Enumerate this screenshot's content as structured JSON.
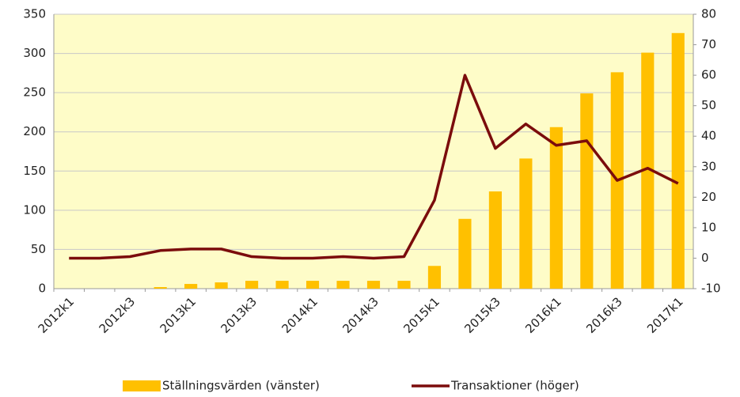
{
  "chart_data": {
    "type": "bar+line",
    "categories": [
      "2012k1",
      null,
      "2012k3",
      null,
      "2013k1",
      null,
      "2013k3",
      null,
      "2014k1",
      null,
      "2014k3",
      null,
      "2015k1",
      null,
      "2015k3",
      null,
      "2016k1",
      null,
      "2016k3",
      null,
      "2017k1"
    ],
    "series": [
      {
        "name": "Ställningsvärden (vänster)",
        "type": "bar",
        "color": "#ffc000",
        "axis": "y",
        "values": [
          0,
          0,
          0,
          2,
          6,
          8,
          10,
          10,
          10,
          10,
          10,
          10,
          29,
          89,
          124,
          166,
          206,
          249,
          276,
          301,
          326
        ]
      },
      {
        "name": "Transaktioner (höger)",
        "type": "line",
        "color": "#7b0c0c",
        "axis": "y2",
        "values": [
          0,
          0,
          0.5,
          2.5,
          3,
          3,
          0.5,
          0,
          0,
          0.5,
          0,
          0.5,
          19,
          60,
          36,
          44,
          37,
          38.5,
          25.5,
          29.5,
          24.5
        ]
      }
    ],
    "ylim": [
      0,
      350
    ],
    "yticks": [
      0,
      50,
      100,
      150,
      200,
      250,
      300,
      350
    ],
    "y2lim": [
      -10,
      80
    ],
    "y2ticks": [
      -10,
      0,
      10,
      20,
      30,
      40,
      50,
      60,
      70,
      80
    ],
    "grid": true,
    "legend": "bottom",
    "plot_background": "#fefcc8"
  }
}
